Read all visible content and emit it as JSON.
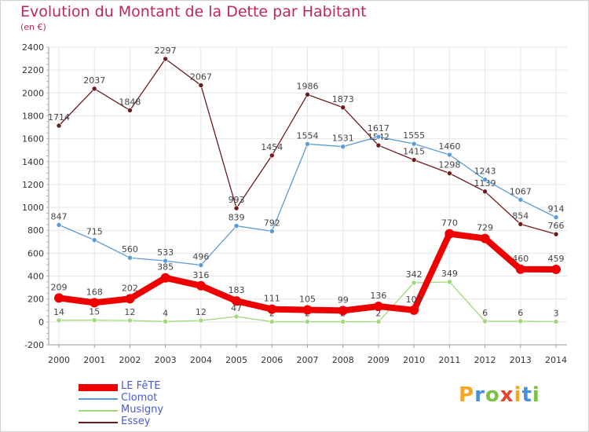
{
  "chart_data": {
    "type": "line",
    "title": "Evolution du Montant de la Dette par Habitant",
    "subtitle": "(en €)",
    "xlabel": "",
    "ylabel": "",
    "ylim": [
      -200,
      2400
    ],
    "yticks": [
      -200,
      0,
      200,
      400,
      600,
      800,
      1000,
      1200,
      1400,
      1600,
      1800,
      2000,
      2200,
      2400
    ],
    "x": [
      "2000",
      "2001",
      "2002",
      "2003",
      "2004",
      "2005",
      "2006",
      "2007",
      "2008",
      "2009",
      "2010",
      "2011",
      "2012",
      "2013",
      "2014"
    ],
    "grid": true,
    "legend_position": "bottom-left",
    "series": [
      {
        "name": "Essey",
        "color": "#6e1a1a",
        "values": [
          1714,
          2037,
          1848,
          2297,
          2067,
          993,
          1454,
          1986,
          1873,
          1542,
          1415,
          1298,
          1139,
          854,
          766
        ],
        "labels": [
          "1714",
          "2037",
          "1848",
          "2297",
          "2067",
          "993",
          "1454",
          "1986",
          "1873",
          "1542",
          "1415",
          "1298",
          "1139",
          "854",
          "766"
        ]
      },
      {
        "name": "Clomot",
        "color": "#5b9bd5",
        "values": [
          847,
          715,
          560,
          533,
          496,
          839,
          792,
          1554,
          1531,
          1617,
          1555,
          1460,
          1243,
          1067,
          914
        ],
        "labels": [
          "847",
          "715",
          "560",
          "533",
          "496",
          "839",
          "792",
          "1554",
          "1531",
          "1617",
          "1555",
          "1460",
          "1243",
          "1067",
          "914"
        ]
      },
      {
        "name": "Musigny",
        "color": "#9ed97a",
        "values": [
          14,
          15,
          12,
          4,
          12,
          47,
          2,
          2,
          2,
          2,
          342,
          349,
          6,
          6,
          3
        ],
        "labels": [
          "14",
          "15",
          "12",
          "4",
          "12",
          "47",
          "2",
          "2",
          "2",
          "2",
          "342",
          "349",
          "6",
          "6",
          "3"
        ]
      },
      {
        "name": "LE FêTE",
        "color": "#ee0000",
        "values": [
          209,
          168,
          202,
          385,
          316,
          183,
          111,
          105,
          99,
          136,
          103,
          770,
          729,
          460,
          459
        ],
        "labels": [
          "209",
          "168",
          "202",
          "385",
          "316",
          "183",
          "111",
          "105",
          "99",
          "136",
          "103",
          "770",
          "729",
          "460",
          "459"
        ]
      }
    ],
    "legend": [
      {
        "label": "LE FêTE",
        "color": "#ee0000",
        "thick": true
      },
      {
        "label": "Clomot",
        "color": "#5b9bd5",
        "thick": false
      },
      {
        "label": "Musigny",
        "color": "#9ed97a",
        "thick": false
      },
      {
        "label": "Essey",
        "color": "#6e1a1a",
        "thick": false
      }
    ]
  },
  "logo": {
    "text": "Proxiti",
    "letter_colors": [
      "#f5a623",
      "#4a90d9",
      "#7cc243",
      "#e8452c",
      "#f5a623",
      "#4a90d9",
      "#7cc243"
    ]
  }
}
